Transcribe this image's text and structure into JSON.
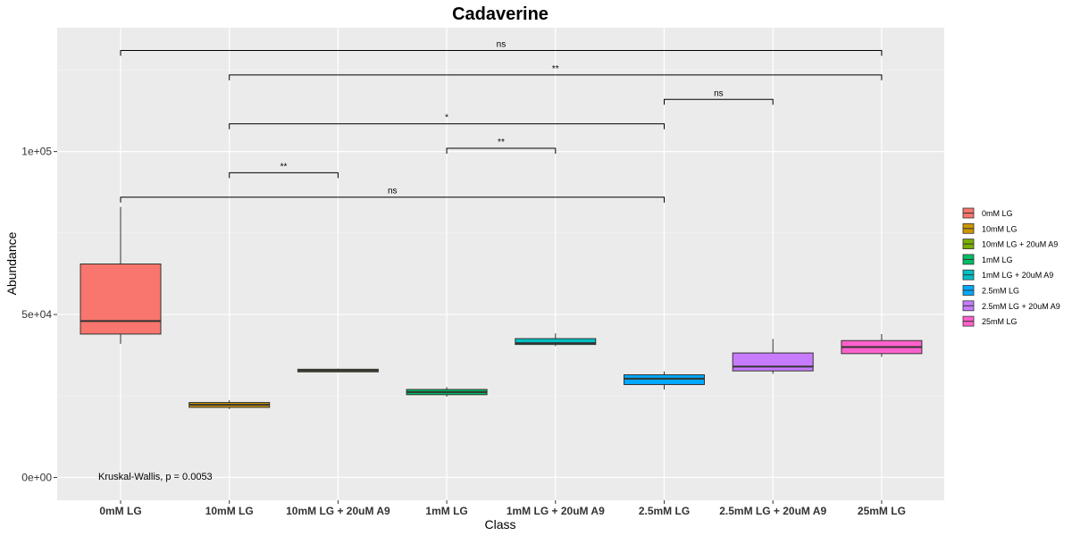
{
  "chart_data": {
    "type": "box",
    "title": "Cadaverine",
    "xlabel": "Class",
    "ylabel": "Abundance",
    "ylim": [
      -7000,
      138000
    ],
    "y_ticks": [
      0,
      50000,
      100000
    ],
    "y_tick_labels": [
      "0e+00",
      "5e+04",
      "1e+05"
    ],
    "grid": true,
    "legend_position": "right",
    "categories": [
      "0mM LG",
      "10mM LG",
      "10mM LG + 20uM A9",
      "1mM LG",
      "1mM LG + 20uM A9",
      "2.5mM LG",
      "2.5mM LG + 20uM A9",
      "25mM LG"
    ],
    "colors": [
      "#F8766D",
      "#CD9600",
      "#7CAE00",
      "#00BE67",
      "#00BFC4",
      "#00A9FF",
      "#C77CFF",
      "#FF61CC"
    ],
    "boxes": [
      {
        "min": 41000,
        "q1": 44000,
        "median": 48000,
        "q3": 65500,
        "max": 83000
      },
      {
        "min": 21000,
        "q1": 21500,
        "median": 22300,
        "q3": 23000,
        "max": 23700
      },
      {
        "min": 32300,
        "q1": 32400,
        "median": 32800,
        "q3": 33200,
        "max": 33400
      },
      {
        "min": 24800,
        "q1": 25400,
        "median": 26200,
        "q3": 27000,
        "max": 27700
      },
      {
        "min": 40300,
        "q1": 40800,
        "median": 41200,
        "q3": 42600,
        "max": 44200
      },
      {
        "min": 27000,
        "q1": 28500,
        "median": 30300,
        "q3": 31500,
        "max": 32500
      },
      {
        "min": 31800,
        "q1": 32700,
        "median": 34000,
        "q3": 38200,
        "max": 42500
      },
      {
        "min": 37000,
        "q1": 38000,
        "median": 40000,
        "q3": 42000,
        "max": 44000
      }
    ],
    "comparisons": [
      {
        "from": 0,
        "to": 7,
        "y": 131000,
        "label": "ns"
      },
      {
        "from": 1,
        "to": 7,
        "y": 123500,
        "label": "**"
      },
      {
        "from": 5,
        "to": 6,
        "y": 116000,
        "label": "ns"
      },
      {
        "from": 1,
        "to": 5,
        "y": 108500,
        "label": "*"
      },
      {
        "from": 3,
        "to": 4,
        "y": 101000,
        "label": "**"
      },
      {
        "from": 1,
        "to": 2,
        "y": 93500,
        "label": "**"
      },
      {
        "from": 0,
        "to": 5,
        "y": 86000,
        "label": "ns"
      }
    ],
    "annotation": "Kruskal-Wallis, p = 0.0053",
    "annotation_y": 1200
  }
}
